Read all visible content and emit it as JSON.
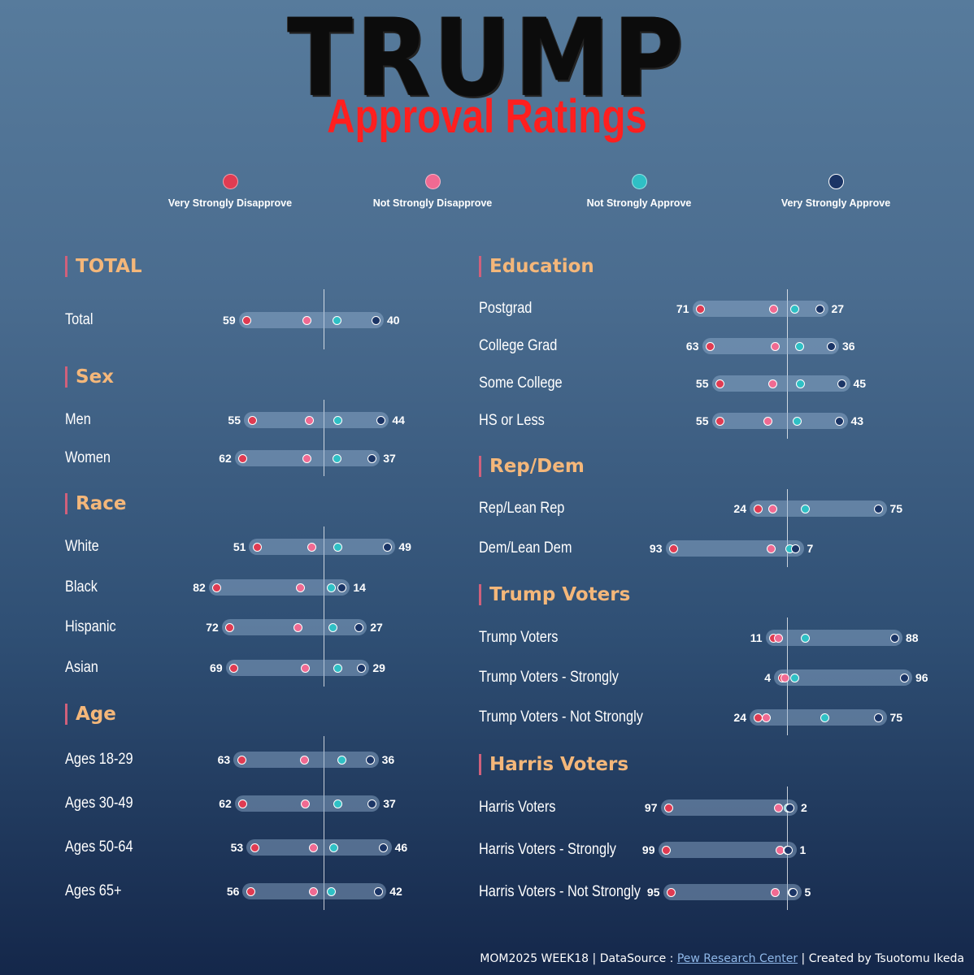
{
  "title": "TRUMP",
  "subtitle": "Approval Ratings",
  "legend": [
    {
      "label": "Very Strongly Disapprove",
      "color": "#e03b52"
    },
    {
      "label": "Not Strongly Disapprove",
      "color": "#f06a92"
    },
    {
      "label": "Not Strongly Approve",
      "color": "#2fc0c5"
    },
    {
      "label": "Very Strongly Approve",
      "color": "#1b3566"
    }
  ],
  "footer": {
    "prefix": "MOM2025 WEEK18 | DataSource : ",
    "source": "Pew Research Center",
    "suffix": "| Created by Tsuotomu Ikeda"
  },
  "chart_data": {
    "type": "dot-range",
    "series": [
      {
        "name": "Very Strongly Disapprove"
      },
      {
        "name": "Not Strongly Disapprove"
      },
      {
        "name": "Not Strongly Approve"
      },
      {
        "name": "Very Strongly Approve"
      }
    ],
    "sections": [
      {
        "title": "TOTAL",
        "rows": [
          {
            "label": "Total",
            "disapprove": 59,
            "approve": 40,
            "nsd": 13,
            "nsa": 10
          }
        ]
      },
      {
        "title": "Sex",
        "rows": [
          {
            "label": "Men",
            "disapprove": 55,
            "approve": 44,
            "nsd": 11,
            "nsa": 11
          },
          {
            "label": "Women",
            "disapprove": 62,
            "approve": 37,
            "nsd": 13,
            "nsa": 10
          }
        ]
      },
      {
        "title": "Race",
        "rows": [
          {
            "label": "White",
            "disapprove": 51,
            "approve": 49,
            "nsd": 9,
            "nsa": 11
          },
          {
            "label": "Black",
            "disapprove": 82,
            "approve": 14,
            "nsd": 18,
            "nsa": 6
          },
          {
            "label": "Hispanic",
            "disapprove": 72,
            "approve": 27,
            "nsd": 20,
            "nsa": 7
          },
          {
            "label": "Asian",
            "disapprove": 69,
            "approve": 29,
            "nsd": 14,
            "nsa": 11
          }
        ]
      },
      {
        "title": "Age",
        "rows": [
          {
            "label": "Ages 18-29",
            "disapprove": 63,
            "approve": 36,
            "nsd": 15,
            "nsa": 14
          },
          {
            "label": "Ages 30-49",
            "disapprove": 62,
            "approve": 37,
            "nsd": 14,
            "nsa": 11
          },
          {
            "label": "Ages 50-64",
            "disapprove": 53,
            "approve": 46,
            "nsd": 8,
            "nsa": 8
          },
          {
            "label": "Ages 65+",
            "disapprove": 56,
            "approve": 42,
            "nsd": 8,
            "nsa": 6
          }
        ]
      },
      {
        "title": "Education",
        "rows": [
          {
            "label": "Postgrad",
            "disapprove": 71,
            "approve": 27,
            "nsd": 11,
            "nsa": 6
          },
          {
            "label": "College Grad",
            "disapprove": 63,
            "approve": 36,
            "nsd": 10,
            "nsa": 10
          },
          {
            "label": "Some College",
            "disapprove": 55,
            "approve": 45,
            "nsd": 12,
            "nsa": 11
          },
          {
            "label": "HS or Less",
            "disapprove": 55,
            "approve": 43,
            "nsd": 16,
            "nsa": 8
          }
        ]
      },
      {
        "title": "Rep/Dem",
        "rows": [
          {
            "label": "Rep/Lean Rep",
            "disapprove": 24,
            "approve": 75,
            "nsd": 12,
            "nsa": 15
          },
          {
            "label": "Dem/Lean Dem",
            "disapprove": 93,
            "approve": 7,
            "nsd": 13,
            "nsa": 2
          }
        ]
      },
      {
        "title": "Trump Voters",
        "rows": [
          {
            "label": "Trump Voters",
            "disapprove": 11,
            "approve": 88,
            "nsd": 7,
            "nsa": 15
          },
          {
            "label": "Trump Voters - Strongly",
            "disapprove": 4,
            "approve": 96,
            "nsd": 2,
            "nsa": 6
          },
          {
            "label": "Trump Voters - Not Strongly",
            "disapprove": 24,
            "approve": 75,
            "nsd": 17,
            "nsa": 31
          }
        ]
      },
      {
        "title": "Harris Voters",
        "rows": [
          {
            "label": "Harris Voters",
            "disapprove": 97,
            "approve": 2,
            "nsd": 7,
            "nsa": 1
          },
          {
            "label": "Harris Voters - Strongly",
            "disapprove": 99,
            "approve": 1,
            "nsd": 6,
            "nsa": 0
          },
          {
            "label": "Harris Voters - Not Strongly",
            "disapprove": 95,
            "approve": 5,
            "nsd": 10,
            "nsa": 4
          }
        ]
      }
    ]
  }
}
